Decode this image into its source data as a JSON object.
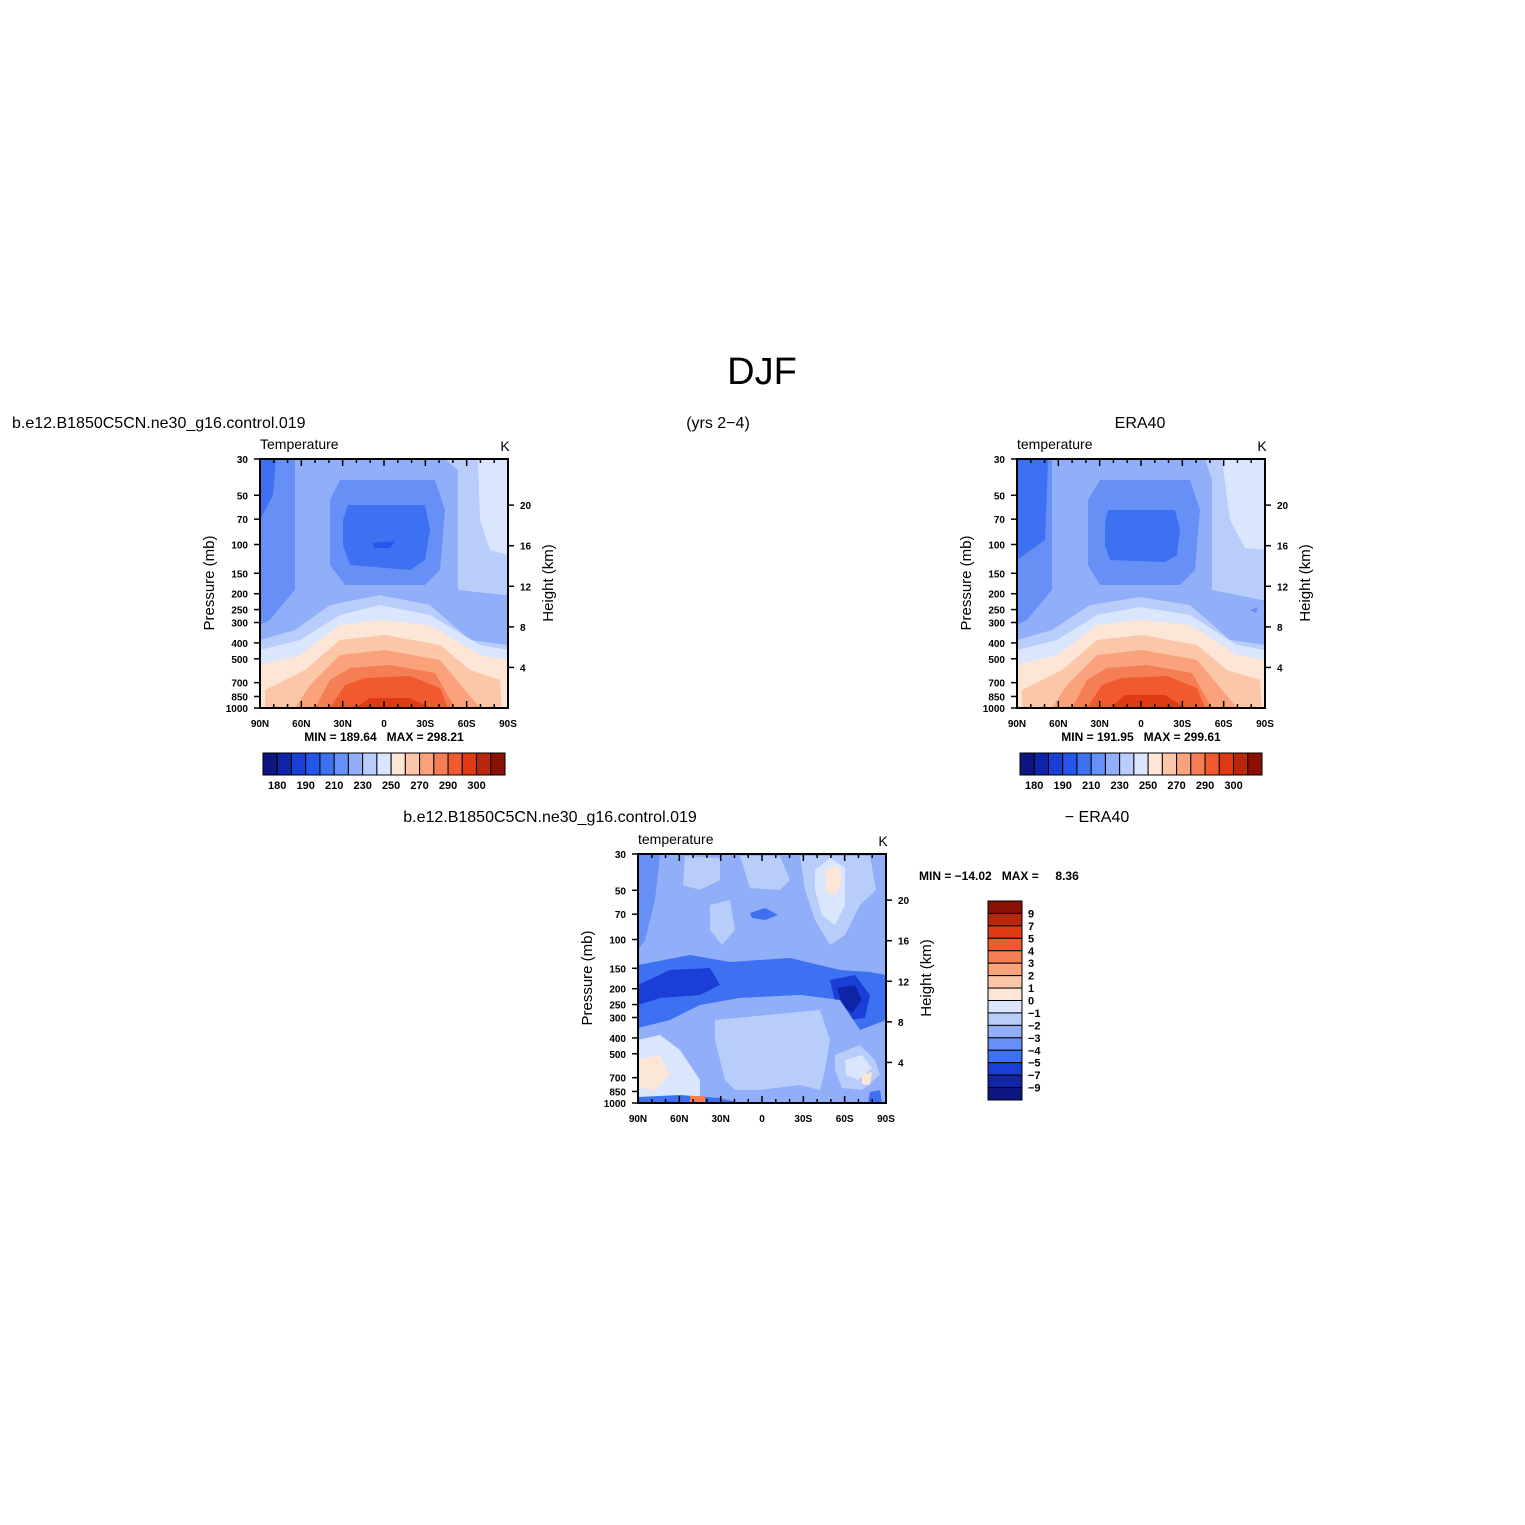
{
  "figure": {
    "title": "DJF",
    "case_name": "b.e12.B1850C5CN.ne30_g16.control.019",
    "years": "(yrs 2−4)",
    "reference": "ERA40",
    "diff_left": "b.e12.B1850C5CN.ne30_g16.control.019",
    "diff_right": "− ERA40"
  },
  "common_axes": {
    "pressure_ticks": [
      "30",
      "50",
      "70",
      "100",
      "150",
      "200",
      "250",
      "300",
      "400",
      "500",
      "700",
      "850",
      "1000"
    ],
    "pressure_values": [
      30,
      50,
      70,
      100,
      150,
      200,
      250,
      300,
      400,
      500,
      700,
      850,
      1000
    ],
    "height_ticks": [
      "20",
      "16",
      "12",
      "8",
      "4"
    ],
    "height_values": [
      20,
      16,
      12,
      8,
      4
    ],
    "lat_ticks": [
      "90N",
      "60N",
      "30N",
      "0",
      "30S",
      "60S",
      "90S"
    ],
    "lat_values": [
      90,
      60,
      30,
      0,
      -30,
      -60,
      -90
    ],
    "ylabel": "Pressure (mb)",
    "ylabel_right": "Height (km)"
  },
  "chart_data": [
    {
      "type": "heatmap",
      "title": "Temperature",
      "units": "K",
      "ylim": [
        1000,
        30
      ],
      "xlim": [
        90,
        -90
      ],
      "stats": "MIN = 189.64   MAX = 298.21",
      "min": 189.64,
      "max": 298.21,
      "levels": [
        180,
        185,
        190,
        195,
        200,
        205,
        210,
        215,
        220,
        225,
        230,
        235,
        240,
        245,
        250,
        255,
        260,
        265,
        270,
        275,
        280,
        285,
        290,
        295,
        300,
        305
      ],
      "colorbar_labels": [
        "180",
        "190",
        "210",
        "230",
        "250",
        "270",
        "290",
        "300"
      ],
      "colorbar_colors": [
        "#0d1680",
        "#1024a8",
        "#1a3ed6",
        "#2456ea",
        "#3d71f2",
        "#6690f5",
        "#90aff8",
        "#b9cdfa",
        "#dae6fd",
        "#fde6d6",
        "#fcc6a8",
        "#faa27c",
        "#f67e55",
        "#f15a2e",
        "#de3a14",
        "#b8260b",
        "#8a1004"
      ]
    },
    {
      "type": "heatmap",
      "title": "temperature",
      "units": "K",
      "ylim": [
        1000,
        30
      ],
      "xlim": [
        90,
        -90
      ],
      "stats": "MIN = 191.95   MAX = 299.61",
      "min": 191.95,
      "max": 299.61,
      "colorbar_labels": [
        "180",
        "190",
        "210",
        "230",
        "250",
        "270",
        "290",
        "300"
      ],
      "colorbar_colors": [
        "#0d1680",
        "#1024a8",
        "#1a3ed6",
        "#2456ea",
        "#3d71f2",
        "#6690f5",
        "#90aff8",
        "#b9cdfa",
        "#dae6fd",
        "#fde6d6",
        "#fcc6a8",
        "#faa27c",
        "#f67e55",
        "#f15a2e",
        "#de3a14",
        "#b8260b",
        "#8a1004"
      ]
    },
    {
      "type": "heatmap",
      "title": "temperature",
      "units": "K",
      "ylim": [
        1000,
        30
      ],
      "xlim": [
        90,
        -90
      ],
      "stats": "MIN = −14.02   MAX =     8.36",
      "min": -14.02,
      "max": 8.36,
      "colorbar_labels": [
        "9",
        "7",
        "5",
        "4",
        "3",
        "2",
        "1",
        "0",
        "−1",
        "−2",
        "−3",
        "−4",
        "−5",
        "−7",
        "−9"
      ],
      "colorbar_colors": [
        "#8a1004",
        "#b8260b",
        "#de3a14",
        "#f15a2e",
        "#f67e55",
        "#faa27c",
        "#fcc6a8",
        "#fde6d6",
        "#dae6fd",
        "#b9cdfa",
        "#90aff8",
        "#6690f5",
        "#3d71f2",
        "#1a3ed6",
        "#1024a8",
        "#0d1680"
      ]
    }
  ]
}
